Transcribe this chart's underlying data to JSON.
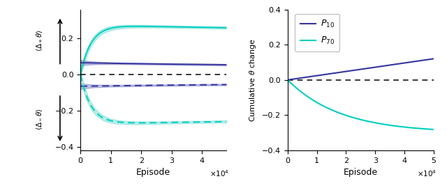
{
  "color_purple": "#3535a0",
  "color_cyan": "#00cfc0",
  "color_purple_fill": "#8888cc",
  "color_cyan_fill": "#80e0d8",
  "xlim_left": [
    0,
    48000
  ],
  "xlim_right": [
    0,
    50000
  ],
  "ylim_left": [
    -0.42,
    0.36
  ],
  "ylim_right": [
    -0.4,
    0.4
  ],
  "yticks_left": [
    -0.4,
    -0.2,
    0.0,
    0.2
  ],
  "yticks_right": [
    -0.4,
    -0.2,
    0.0,
    0.2,
    0.4
  ],
  "xticks_left": [
    0,
    10000,
    20000,
    30000,
    40000
  ],
  "xticks_right": [
    0,
    10000,
    20000,
    30000,
    40000,
    50000
  ],
  "xticklabels_left": [
    "0",
    "1",
    "2",
    "3",
    "4"
  ],
  "xticklabels_right": [
    "0",
    "1",
    "2",
    "3",
    "4",
    "5"
  ],
  "xlabel": "Episode",
  "ylabel_right": "Cumulative $\\theta$ change",
  "legend_p10": "$P_{10}$",
  "legend_p70": "$P_{70}$",
  "n_points": 500,
  "background": "#f0f0f0"
}
